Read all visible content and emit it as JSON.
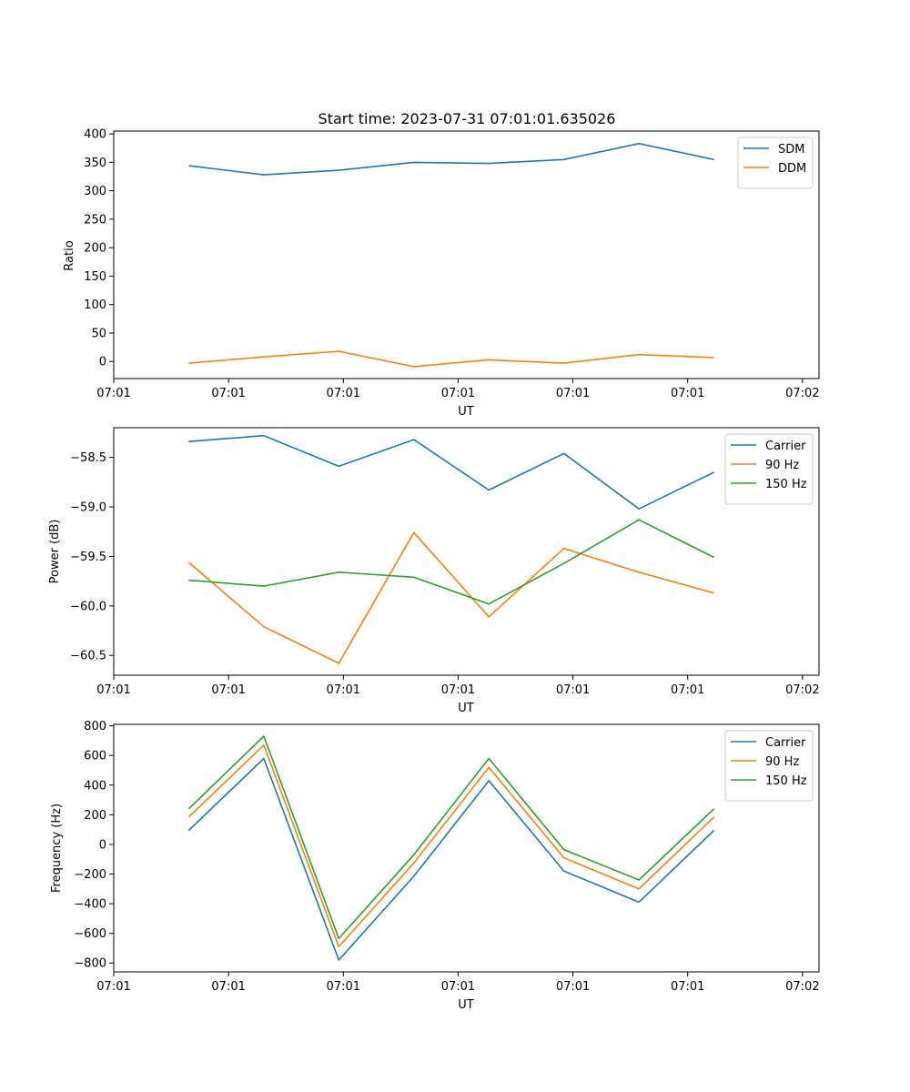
{
  "chart_data": [
    {
      "type": "line",
      "title": "Start time: 2023-07-31 07:01:01.635026",
      "xlabel": "UT",
      "ylabel": "Ratio",
      "x": [
        0.5,
        1.0,
        1.5,
        2.0,
        2.5,
        3.0,
        3.5,
        4.0
      ],
      "xlim": [
        0.0,
        4.7
      ],
      "x_ticks": [
        0.0,
        0.765,
        1.53,
        2.295,
        3.06,
        3.825,
        4.59
      ],
      "x_tick_labels": [
        "07:01",
        "07:01",
        "07:01",
        "07:01",
        "07:01",
        "07:01",
        "07:02"
      ],
      "ylim": [
        -30,
        405
      ],
      "y_ticks": [
        0,
        50,
        100,
        150,
        200,
        250,
        300,
        350,
        400
      ],
      "y_tick_labels": [
        "0",
        "50",
        "100",
        "150",
        "200",
        "250",
        "300",
        "350",
        "400"
      ],
      "legend": "top-right",
      "series": [
        {
          "name": "SDM",
          "color": "#1f77b4",
          "values": [
            344,
            328,
            336,
            350,
            348,
            355,
            383,
            355
          ]
        },
        {
          "name": "DDM",
          "color": "#ff7f0e",
          "values": [
            -3,
            8,
            18,
            -9,
            3,
            -3,
            12,
            7
          ]
        }
      ]
    },
    {
      "type": "line",
      "title": "",
      "xlabel": "UT",
      "ylabel": "Power (dB)",
      "x": [
        0.5,
        1.0,
        1.5,
        2.0,
        2.5,
        3.0,
        3.5,
        4.0
      ],
      "xlim": [
        0.0,
        4.7
      ],
      "x_ticks": [
        0.0,
        0.765,
        1.53,
        2.295,
        3.06,
        3.825,
        4.59
      ],
      "x_tick_labels": [
        "07:01",
        "07:01",
        "07:01",
        "07:01",
        "07:01",
        "07:01",
        "07:02"
      ],
      "ylim": [
        -60.7,
        -58.2
      ],
      "y_ticks": [
        -60.5,
        -60.0,
        -59.5,
        -59.0,
        -58.5
      ],
      "y_tick_labels": [
        "−60.5",
        "−60.0",
        "−59.5",
        "−59.0",
        "−58.5"
      ],
      "legend": "top-right",
      "series": [
        {
          "name": "Carrier",
          "color": "#1f77b4",
          "values": [
            -58.34,
            -58.28,
            -58.59,
            -58.32,
            -58.83,
            -58.46,
            -59.02,
            -58.65
          ]
        },
        {
          "name": "90 Hz",
          "color": "#ff7f0e",
          "values": [
            -59.56,
            -60.21,
            -60.58,
            -59.26,
            -60.11,
            -59.42,
            -59.66,
            -59.87
          ]
        },
        {
          "name": "150 Hz",
          "color": "#2ca02c",
          "values": [
            -59.74,
            -59.8,
            -59.66,
            -59.71,
            -59.98,
            -59.57,
            -59.13,
            -59.51
          ]
        }
      ]
    },
    {
      "type": "line",
      "title": "",
      "xlabel": "UT",
      "ylabel": "Frequency (Hz)",
      "x": [
        0.5,
        1.0,
        1.5,
        2.0,
        2.5,
        3.0,
        3.5,
        4.0
      ],
      "xlim": [
        0.0,
        4.7
      ],
      "x_ticks": [
        0.0,
        0.765,
        1.53,
        2.295,
        3.06,
        3.825,
        4.59
      ],
      "x_tick_labels": [
        "07:01",
        "07:01",
        "07:01",
        "07:01",
        "07:01",
        "07:01",
        "07:02"
      ],
      "ylim": [
        -860,
        810
      ],
      "y_ticks": [
        -800,
        -600,
        -400,
        -200,
        0,
        200,
        400,
        600,
        800
      ],
      "y_tick_labels": [
        "−800",
        "−600",
        "−400",
        "−200",
        "0",
        "200",
        "400",
        "600",
        "800"
      ],
      "legend": "top-right",
      "series": [
        {
          "name": "Carrier",
          "color": "#1f77b4",
          "values": [
            95,
            580,
            -780,
            -215,
            430,
            -180,
            -390,
            95
          ]
        },
        {
          "name": "90 Hz",
          "color": "#ff7f0e",
          "values": [
            185,
            670,
            -690,
            -125,
            520,
            -90,
            -300,
            185
          ]
        },
        {
          "name": "150 Hz",
          "color": "#2ca02c",
          "values": [
            240,
            730,
            -635,
            -70,
            580,
            -35,
            -240,
            240
          ]
        }
      ]
    }
  ]
}
